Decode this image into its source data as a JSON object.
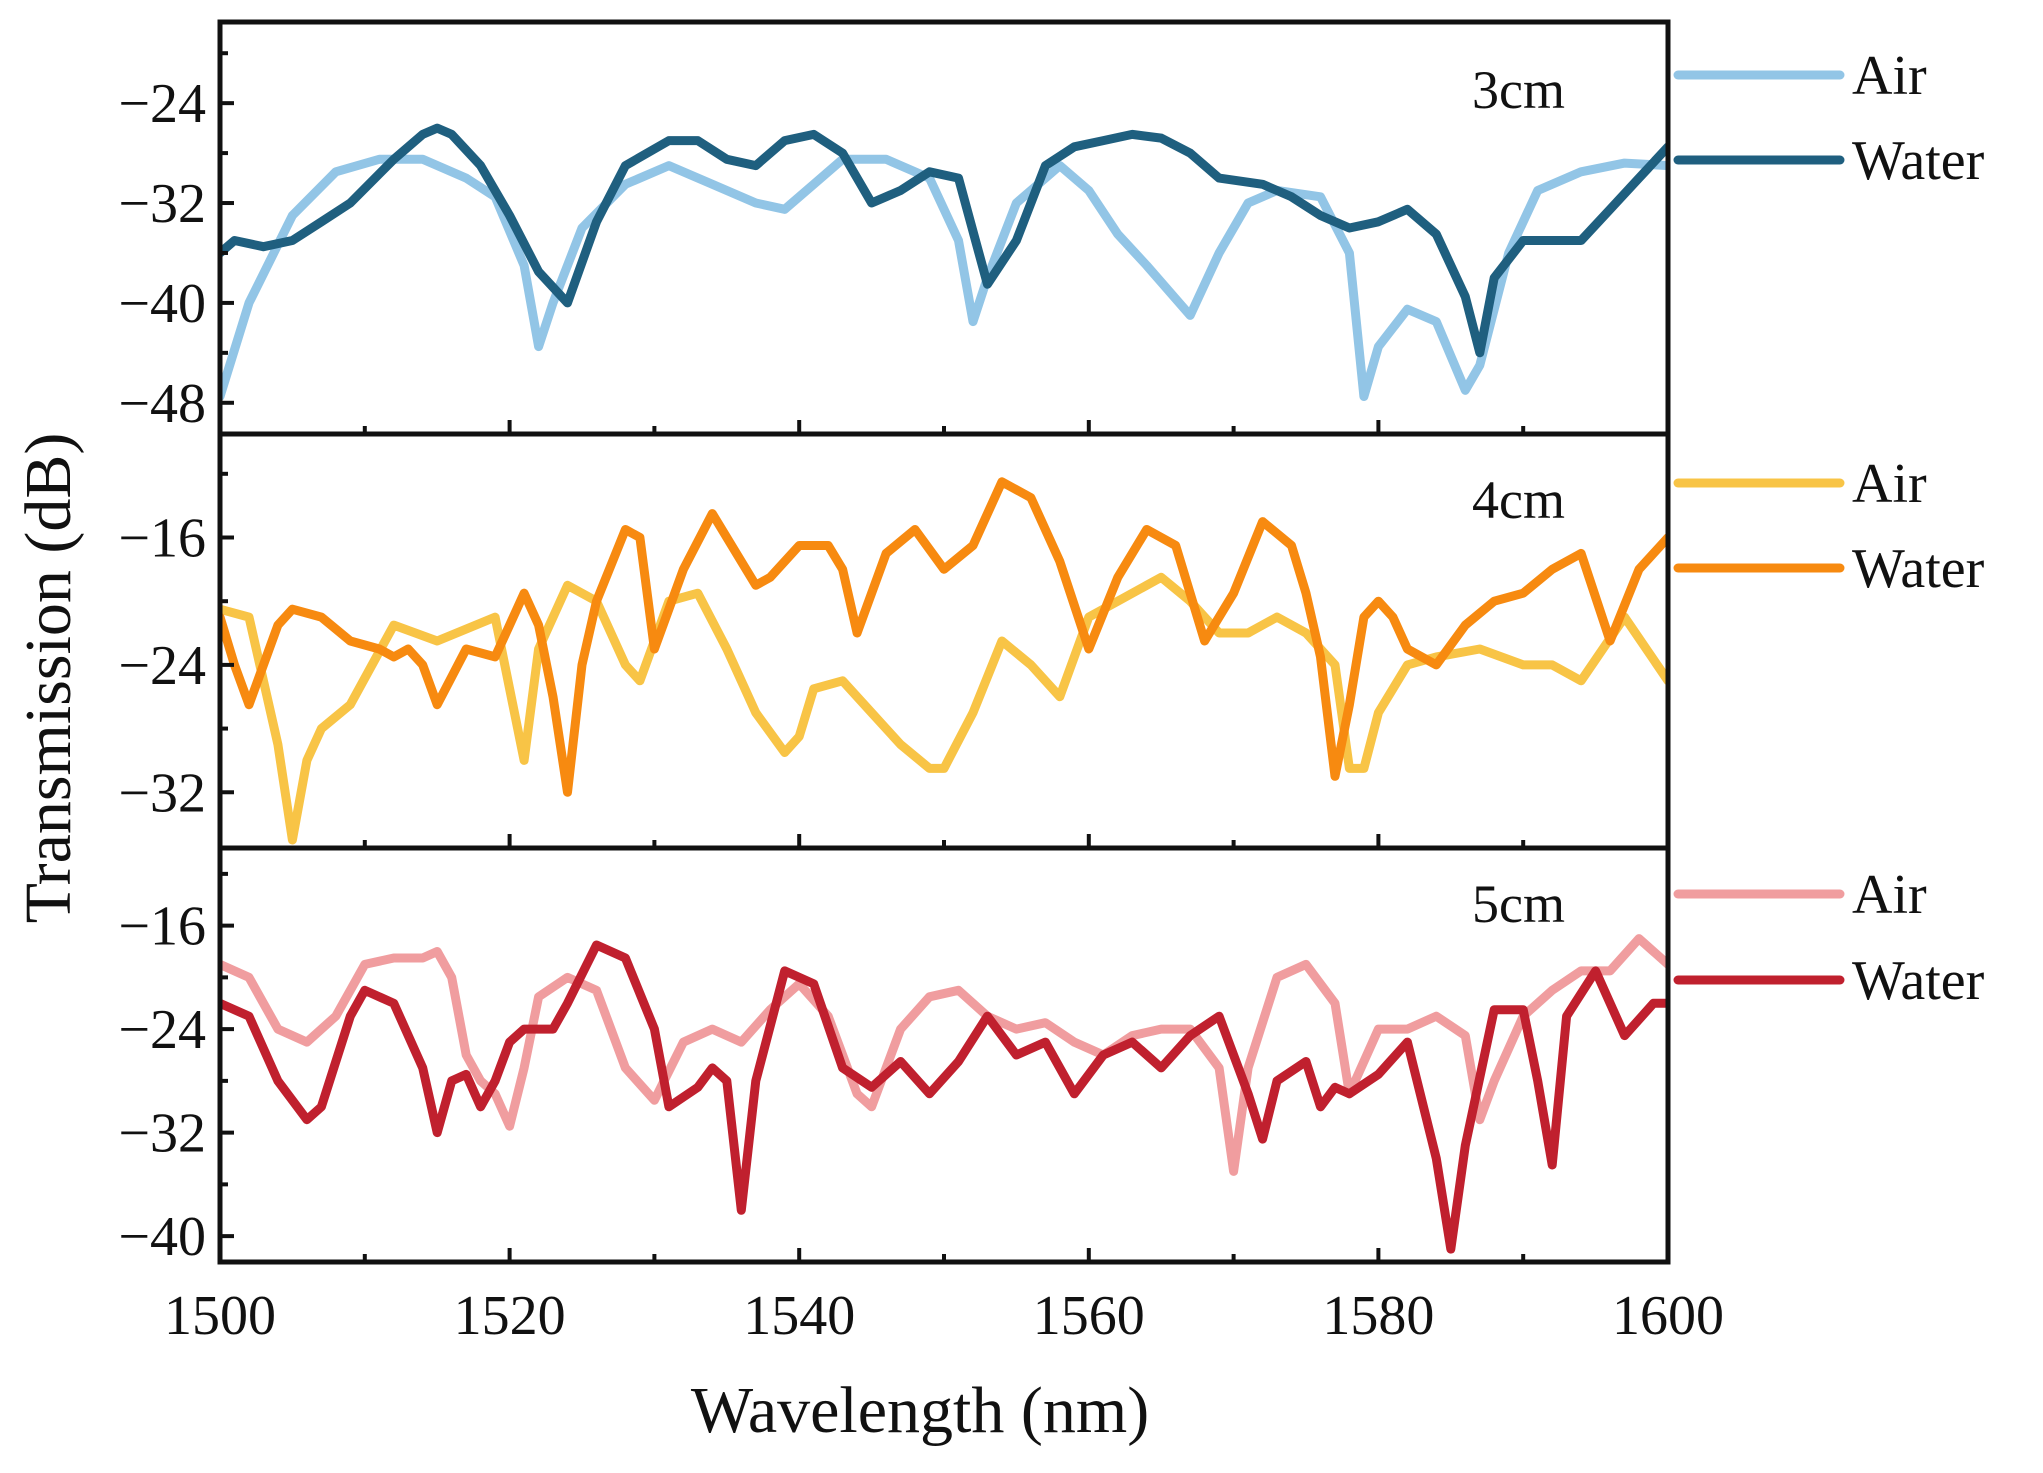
{
  "figure": {
    "xlabel": "Wavelength (nm)",
    "ylabel": "Transmission (dB)"
  },
  "chart_data": [
    {
      "type": "line",
      "title": "3cm",
      "xlabel": "Wavelength (nm)",
      "ylabel": "Transmission (dB)",
      "xlim": [
        1500,
        1600
      ],
      "ylim": [
        -50.5,
        -17.5
      ],
      "xticks": [
        1500,
        1520,
        1540,
        1560,
        1580,
        1600
      ],
      "yticks": [
        -48,
        -40,
        -32,
        -24
      ],
      "ytick_labels": [
        "−48",
        "−40",
        "−32",
        "−24"
      ],
      "legend": "right-outside",
      "series": [
        {
          "name": "Air",
          "color": "#92c5e6",
          "x": [
            1500,
            1502,
            1505,
            1508,
            1511,
            1514,
            1517,
            1519,
            1521,
            1522,
            1523,
            1525,
            1528,
            1531,
            1534,
            1537,
            1539,
            1541,
            1543,
            1546,
            1549,
            1551,
            1552,
            1553,
            1555,
            1557,
            1558,
            1560,
            1562,
            1564,
            1567,
            1569,
            1571,
            1573,
            1576,
            1578,
            1579,
            1580,
            1582,
            1584,
            1586,
            1587,
            1589,
            1591,
            1594,
            1597,
            1600
          ],
          "y": [
            -47.5,
            -40,
            -33,
            -29.5,
            -28.5,
            -28.5,
            -30,
            -31.5,
            -37,
            -43.5,
            -40,
            -34,
            -30.5,
            -29,
            -30.5,
            -32,
            -32.5,
            -30.5,
            -28.5,
            -28.5,
            -30,
            -35,
            -41.5,
            -38,
            -32,
            -30,
            -29,
            -31,
            -34.5,
            -37,
            -41,
            -36,
            -32,
            -31,
            -31.5,
            -36,
            -47.5,
            -43.5,
            -40.5,
            -41.5,
            -47,
            -45,
            -36,
            -31,
            -29.5,
            -28.8,
            -29
          ]
        },
        {
          "name": "Water",
          "color": "#1f5f7f",
          "x": [
            1500,
            1501,
            1503,
            1505,
            1507,
            1509,
            1512,
            1514,
            1515,
            1516,
            1518,
            1520,
            1522,
            1524,
            1526,
            1528,
            1531,
            1533,
            1535,
            1537,
            1539,
            1541,
            1543,
            1545,
            1547,
            1549,
            1551,
            1553,
            1555,
            1557,
            1559,
            1561,
            1563,
            1565,
            1567,
            1569,
            1572,
            1574,
            1576,
            1578,
            1580,
            1582,
            1584,
            1586,
            1587,
            1588,
            1590,
            1592,
            1594,
            1596,
            1598,
            1600
          ],
          "y": [
            -36,
            -35,
            -35.5,
            -35,
            -33.5,
            -32,
            -28.5,
            -26.5,
            -26,
            -26.5,
            -29,
            -33,
            -37.5,
            -40,
            -33.5,
            -29,
            -27,
            -27,
            -28.5,
            -29,
            -27,
            -26.5,
            -28,
            -32,
            -31,
            -29.5,
            -30,
            -38.5,
            -35,
            -29,
            -27.5,
            -27,
            -26.5,
            -26.8,
            -28,
            -30,
            -30.5,
            -31.5,
            -33,
            -34,
            -33.5,
            -32.5,
            -34.5,
            -39.5,
            -44,
            -38,
            -35,
            -35,
            -35,
            -32.5,
            -30,
            -27.5
          ]
        }
      ]
    },
    {
      "type": "line",
      "title": "4cm",
      "xlabel": "Wavelength (nm)",
      "ylabel": "Transmission (dB)",
      "xlim": [
        1500,
        1600
      ],
      "ylim": [
        -35.5,
        -9.5
      ],
      "xticks": [
        1500,
        1520,
        1540,
        1560,
        1580,
        1600
      ],
      "yticks": [
        -32,
        -24,
        -16
      ],
      "ytick_labels": [
        "−32",
        "−24",
        "−16"
      ],
      "legend": "right-outside",
      "series": [
        {
          "name": "Air",
          "color": "#f8c446",
          "x": [
            1500,
            1502,
            1504,
            1505,
            1506,
            1507,
            1509,
            1512,
            1515,
            1519,
            1521,
            1522,
            1524,
            1526,
            1528,
            1529,
            1531,
            1533,
            1535,
            1537,
            1539,
            1540,
            1541,
            1543,
            1545,
            1547,
            1549,
            1550,
            1552,
            1554,
            1556,
            1558,
            1560,
            1562,
            1565,
            1567,
            1569,
            1571,
            1573,
            1575,
            1577,
            1578,
            1579,
            1580,
            1582,
            1584,
            1587,
            1590,
            1592,
            1594,
            1597,
            1600
          ],
          "y": [
            -20.5,
            -21,
            -29,
            -35,
            -30,
            -28,
            -26.5,
            -21.5,
            -22.5,
            -21,
            -30,
            -23,
            -19,
            -20,
            -24,
            -25,
            -20,
            -19.5,
            -23,
            -27,
            -29.5,
            -28.5,
            -25.5,
            -25,
            -27,
            -29,
            -30.5,
            -30.5,
            -27,
            -22.5,
            -24,
            -26,
            -21,
            -20,
            -18.5,
            -20,
            -22,
            -22,
            -21,
            -22,
            -24,
            -30.5,
            -30.5,
            -27,
            -24,
            -23.5,
            -23,
            -24,
            -24,
            -25,
            -21,
            -25
          ]
        },
        {
          "name": "Water",
          "color": "#f78a10",
          "x": [
            1500,
            1501,
            1502,
            1504,
            1505,
            1507,
            1509,
            1511,
            1512,
            1513,
            1514,
            1515,
            1517,
            1519,
            1520,
            1521,
            1522,
            1523,
            1524,
            1525,
            1526,
            1528,
            1529,
            1530,
            1532,
            1534,
            1536,
            1537,
            1538,
            1540,
            1542,
            1543,
            1544,
            1546,
            1548,
            1550,
            1552,
            1554,
            1556,
            1558,
            1560,
            1562,
            1564,
            1566,
            1568,
            1570,
            1572,
            1574,
            1575,
            1576,
            1577,
            1578,
            1579,
            1580,
            1581,
            1582,
            1584,
            1586,
            1588,
            1590,
            1592,
            1594,
            1596,
            1598,
            1600
          ],
          "y": [
            -21,
            -24,
            -26.5,
            -21.5,
            -20.5,
            -21,
            -22.5,
            -23,
            -23.5,
            -23,
            -24,
            -26.5,
            -23,
            -23.5,
            -21.5,
            -19.5,
            -21.5,
            -26,
            -32,
            -24,
            -20,
            -15.5,
            -16,
            -23,
            -18,
            -14.5,
            -17.5,
            -19,
            -18.5,
            -16.5,
            -16.5,
            -18,
            -22,
            -17,
            -15.5,
            -18,
            -16.5,
            -12.5,
            -13.5,
            -17.5,
            -23,
            -18.5,
            -15.5,
            -16.5,
            -22.5,
            -19.5,
            -15,
            -16.5,
            -19.5,
            -23.5,
            -31,
            -26.5,
            -21,
            -20,
            -21,
            -23,
            -24,
            -21.5,
            -20,
            -19.5,
            -18,
            -17,
            -22.5,
            -18,
            -16
          ]
        }
      ]
    },
    {
      "type": "line",
      "title": "5cm",
      "xlabel": "Wavelength (nm)",
      "ylabel": "Transmission (dB)",
      "xlim": [
        1500,
        1600
      ],
      "ylim": [
        -42,
        -10
      ],
      "xticks": [
        1500,
        1520,
        1540,
        1560,
        1580,
        1600
      ],
      "yticks": [
        -40,
        -32,
        -24,
        -16
      ],
      "ytick_labels": [
        "−40",
        "−32",
        "−24",
        "−16"
      ],
      "legend": "right-outside",
      "series": [
        {
          "name": "Air",
          "color": "#f09d9f",
          "x": [
            1500,
            1502,
            1504,
            1506,
            1508,
            1510,
            1512,
            1514,
            1515,
            1516,
            1517,
            1518,
            1519,
            1520,
            1521,
            1522,
            1524,
            1526,
            1528,
            1530,
            1532,
            1534,
            1536,
            1538,
            1540,
            1542,
            1544,
            1545,
            1547,
            1549,
            1551,
            1553,
            1555,
            1557,
            1559,
            1561,
            1563,
            1565,
            1567,
            1569,
            1570,
            1571,
            1573,
            1575,
            1577,
            1578,
            1580,
            1582,
            1584,
            1586,
            1587,
            1588,
            1590,
            1592,
            1594,
            1596,
            1598,
            1600
          ],
          "y": [
            -19,
            -20,
            -24,
            -25,
            -23,
            -19,
            -18.5,
            -18.5,
            -18,
            -20,
            -26,
            -28,
            -29,
            -31.5,
            -27,
            -21.5,
            -20,
            -21,
            -27,
            -29.5,
            -25,
            -24,
            -25,
            -22.5,
            -20.5,
            -23,
            -29,
            -30,
            -24,
            -21.5,
            -21,
            -23,
            -24,
            -23.5,
            -25,
            -26,
            -24.5,
            -24,
            -24,
            -27,
            -35,
            -27,
            -20,
            -19,
            -22,
            -29,
            -24,
            -24,
            -23,
            -24.5,
            -31,
            -28,
            -23,
            -21,
            -19.5,
            -19.5,
            -17,
            -19
          ]
        },
        {
          "name": "Water",
          "color": "#c0202e",
          "x": [
            1500,
            1502,
            1504,
            1506,
            1507,
            1509,
            1510,
            1512,
            1514,
            1515,
            1516,
            1517,
            1518,
            1519,
            1520,
            1521,
            1523,
            1524,
            1526,
            1528,
            1530,
            1531,
            1533,
            1534,
            1535,
            1536,
            1537,
            1539,
            1541,
            1543,
            1545,
            1547,
            1549,
            1551,
            1553,
            1555,
            1557,
            1559,
            1561,
            1563,
            1565,
            1567,
            1569,
            1571,
            1572,
            1573,
            1575,
            1576,
            1577,
            1578,
            1580,
            1582,
            1584,
            1585,
            1586,
            1588,
            1590,
            1591,
            1592,
            1593,
            1595,
            1597,
            1599,
            1600
          ],
          "y": [
            -22,
            -23,
            -28,
            -31,
            -30,
            -23,
            -21,
            -22,
            -27,
            -32,
            -28,
            -27.5,
            -30,
            -28,
            -25,
            -24,
            -24,
            -22,
            -17.5,
            -18.5,
            -24,
            -30,
            -28.5,
            -27,
            -28,
            -38,
            -28,
            -19.5,
            -20.5,
            -27,
            -28.5,
            -26.5,
            -29,
            -26.5,
            -23,
            -26,
            -25,
            -29,
            -26,
            -25,
            -27,
            -24.5,
            -23,
            -29,
            -32.5,
            -28,
            -26.5,
            -30,
            -28.5,
            -29,
            -27.5,
            -25,
            -34,
            -41,
            -33,
            -22.5,
            -22.5,
            -28,
            -34.5,
            -23,
            -19.5,
            -24.5,
            -22,
            -22
          ]
        }
      ]
    }
  ]
}
